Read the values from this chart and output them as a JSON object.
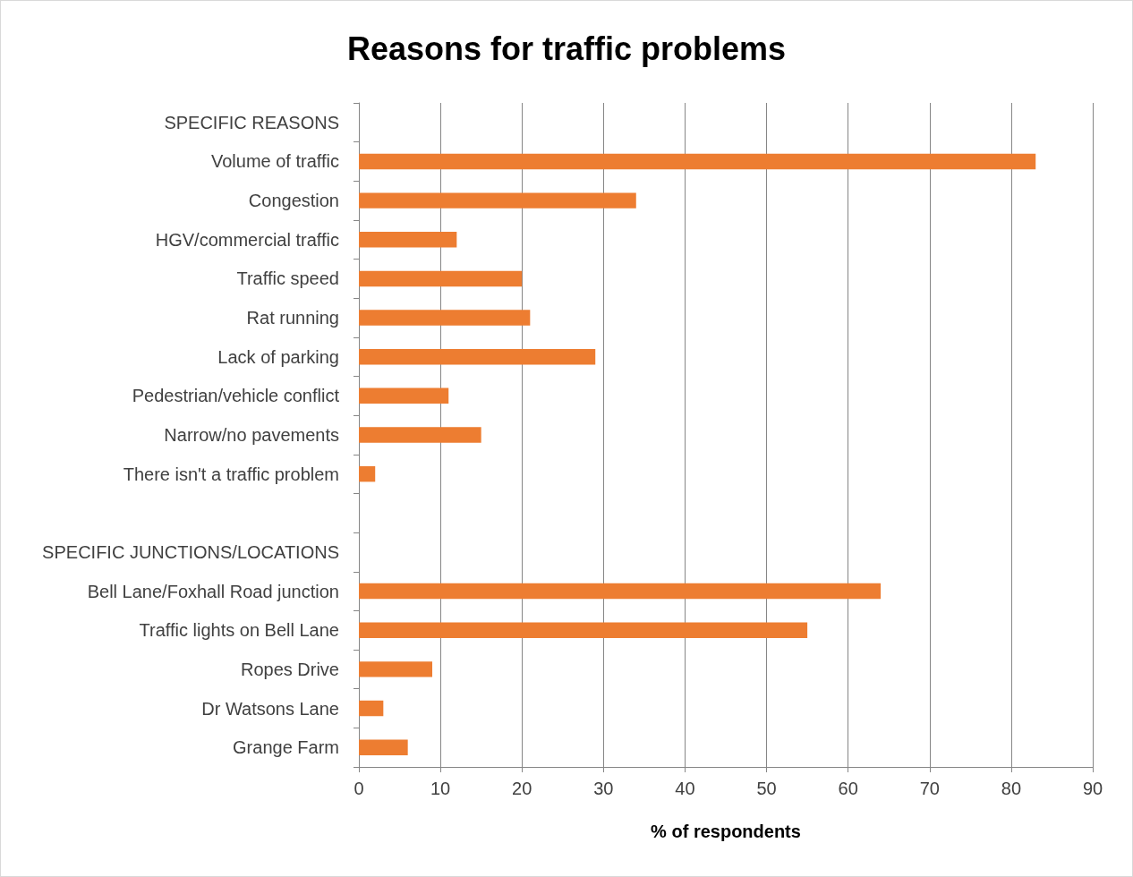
{
  "chart_data": {
    "type": "bar",
    "orientation": "horizontal",
    "title": "Reasons for traffic problems",
    "xlabel": "% of respondents",
    "categories": [
      "SPECIFIC REASONS",
      "Volume of traffic",
      "Congestion",
      "HGV/commercial traffic",
      "Traffic speed",
      "Rat running",
      "Lack of parking",
      "Pedestrian/vehicle conflict",
      "Narrow/no pavements",
      "There isn't a traffic problem",
      null,
      "SPECIFIC JUNCTIONS/LOCATIONS",
      "Bell Lane/Foxhall Road junction",
      "Traffic lights on Bell Lane",
      "Ropes Drive",
      "Dr Watsons Lane",
      "Grange Farm"
    ],
    "values": [
      null,
      83,
      34,
      12,
      20,
      21,
      29,
      11,
      15,
      2,
      null,
      null,
      64,
      55,
      9,
      3,
      6
    ],
    "color": "#ed7d31",
    "xlim": [
      0,
      90
    ],
    "xticks": [
      0,
      10,
      20,
      30,
      40,
      50,
      60,
      70,
      80,
      90
    ],
    "grid": "x"
  }
}
